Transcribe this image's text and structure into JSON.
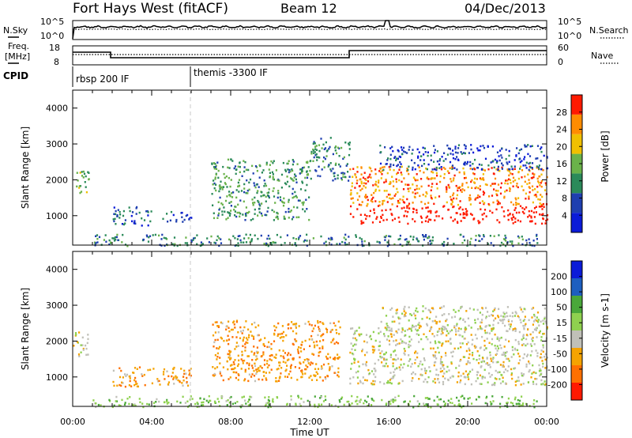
{
  "header": {
    "title": "Fort Hays West (fitACF)",
    "beam": "Beam 12",
    "date": "04/Dec/2013"
  },
  "noise_panel": {
    "left_label": "N.Sky",
    "right_label": "N.Search",
    "ticks": [
      "10^5",
      "10^0"
    ]
  },
  "freq_panel": {
    "left_label_1": "Freq.",
    "left_label_2": "[MHz]",
    "left_ticks": [
      "18",
      "8"
    ],
    "right_label": "Nave",
    "right_ticks": [
      "60",
      "0"
    ]
  },
  "cpid": {
    "label": "CPID",
    "modes": [
      {
        "name": "rbsp 200 IF",
        "start_hour": 0
      },
      {
        "name": "themis -3300 IF",
        "start_hour": 6
      }
    ]
  },
  "x_axis": {
    "label": "Time UT",
    "tick_labels": [
      "00:00",
      "04:00",
      "08:00",
      "12:00",
      "16:00",
      "20:00",
      "00:00"
    ],
    "range_hours": [
      0,
      24
    ]
  },
  "power_panel": {
    "ylabel": "Slant Range [km]",
    "ytick_labels": [
      "1000",
      "2000",
      "3000",
      "4000"
    ],
    "colorbar_label": "Power [dB]",
    "colorbar_ticks": [
      "4",
      "8",
      "12",
      "16",
      "20",
      "24",
      "28"
    ],
    "colors": [
      "#0b1bd8",
      "#1f3fb0",
      "#2b8a5a",
      "#6ab24a",
      "#f0c000",
      "#ff8c00",
      "#ff1a00"
    ]
  },
  "velocity_panel": {
    "ylabel": "Slant Range [km]",
    "ytick_labels": [
      "1000",
      "2000",
      "3000",
      "4000"
    ],
    "colorbar_label": "Velocity [m s-1]",
    "colorbar_ticks": [
      "200",
      "100",
      "50",
      "15",
      "-15",
      "-50",
      "-100",
      "-200"
    ],
    "colors": [
      "#0b1bd8",
      "#1e5fc0",
      "#4aa83a",
      "#8fd14f",
      "#c0c0b8",
      "#f5a300",
      "#ff7000",
      "#ff1a00"
    ]
  },
  "chart_data": [
    {
      "type": "heatmap",
      "title": "Power [dB]",
      "xlabel": "Time UT",
      "ylabel": "Slant Range [km]",
      "xlim_hours": [
        0,
        24
      ],
      "ylim_km": [
        180,
        4500
      ],
      "colorbar_range": [
        0,
        30
      ],
      "regions": [
        {
          "t0": 0.0,
          "t1": 0.8,
          "r0": 1600,
          "r1": 2300,
          "value": 14
        },
        {
          "t0": 2.0,
          "t1": 4.0,
          "r0": 750,
          "r1": 1300,
          "value": 8
        },
        {
          "t0": 4.5,
          "t1": 6.0,
          "r0": 850,
          "r1": 1150,
          "value": 6
        },
        {
          "t0": 7.0,
          "t1": 12.0,
          "r0": 900,
          "r1": 2600,
          "value": 12
        },
        {
          "t0": 12.0,
          "t1": 14.0,
          "r0": 2000,
          "r1": 3200,
          "value": 10
        },
        {
          "t0": 14.0,
          "t1": 24.0,
          "r0": 800,
          "r1": 2400,
          "value": 24
        },
        {
          "t0": 15.5,
          "t1": 24.0,
          "r0": 2300,
          "r1": 3000,
          "value": 6
        },
        {
          "t0": 1.0,
          "t1": 23.5,
          "r0": 180,
          "r1": 500,
          "value": 10
        }
      ]
    },
    {
      "type": "heatmap",
      "title": "Velocity [m s-1]",
      "xlabel": "Time UT",
      "ylabel": "Slant Range [km]",
      "xlim_hours": [
        0,
        24
      ],
      "ylim_km": [
        180,
        4500
      ],
      "colorbar_range": [
        -200,
        200
      ],
      "regions": [
        {
          "t0": 0.0,
          "t1": 0.8,
          "r0": 1600,
          "r1": 2300,
          "value": 0
        },
        {
          "t0": 2.0,
          "t1": 6.0,
          "r0": 750,
          "r1": 1300,
          "value": -40
        },
        {
          "t0": 7.0,
          "t1": 13.5,
          "r0": 900,
          "r1": 2600,
          "value": -40
        },
        {
          "t0": 14.0,
          "t1": 24.0,
          "r0": 800,
          "r1": 2400,
          "value": 0
        },
        {
          "t0": 15.5,
          "t1": 24.0,
          "r0": 2300,
          "r1": 3000,
          "value": 0
        },
        {
          "t0": 1.0,
          "t1": 23.5,
          "r0": 180,
          "r1": 500,
          "value": 40
        }
      ]
    }
  ]
}
